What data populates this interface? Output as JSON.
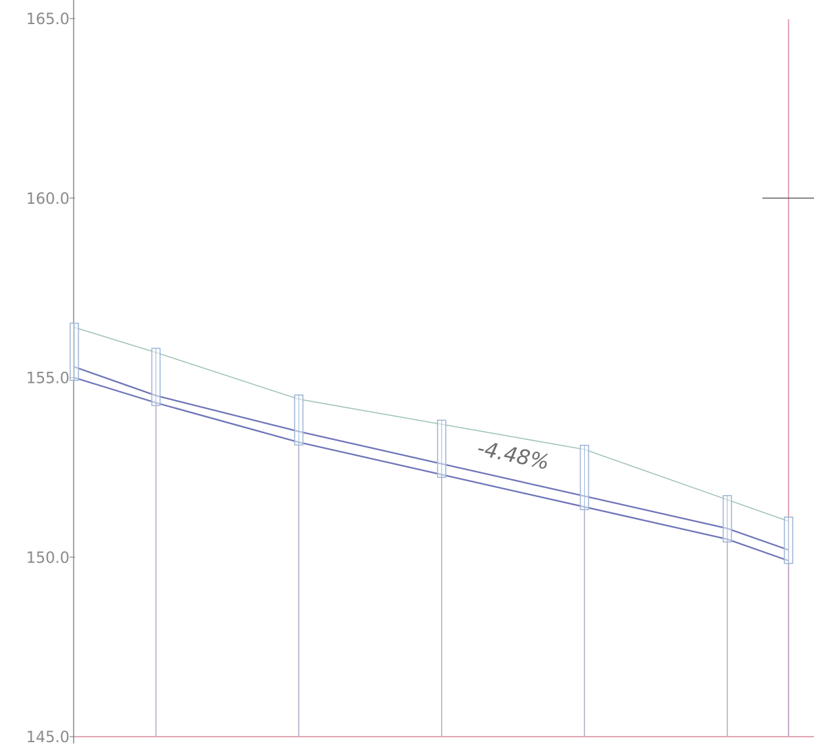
{
  "chart_data": {
    "type": "line",
    "ylim": [
      145.0,
      165.0
    ],
    "y_ticks": [
      "165.0",
      "160.0",
      "155.0",
      "150.0",
      "145.0"
    ],
    "grade_label": "-4.48%",
    "series": [
      {
        "role": "ground",
        "x": [
          0,
          8,
          22,
          36,
          50,
          64,
          70
        ],
        "values": [
          156.4,
          155.7,
          154.4,
          153.7,
          153.0,
          151.6,
          151.0
        ]
      },
      {
        "role": "pipe-top",
        "x": [
          0,
          8,
          22,
          36,
          50,
          64,
          70
        ],
        "values": [
          155.3,
          154.5,
          153.5,
          152.6,
          151.7,
          150.8,
          150.2
        ]
      },
      {
        "role": "pipe-bottom",
        "x": [
          0,
          8,
          22,
          36,
          50,
          64,
          70
        ],
        "values": [
          155.0,
          154.3,
          153.2,
          152.3,
          151.4,
          150.5,
          149.9
        ]
      }
    ],
    "structures_x": [
      0,
      8,
      22,
      36,
      50,
      64,
      70
    ],
    "colors": {
      "ground": "#9fc4b2",
      "pipe": "#6e74b8",
      "structure": "#9fb7d6",
      "drop": "#b6a8c8",
      "axis": "#8a8a8a",
      "baseline": "#d98b9c"
    }
  }
}
